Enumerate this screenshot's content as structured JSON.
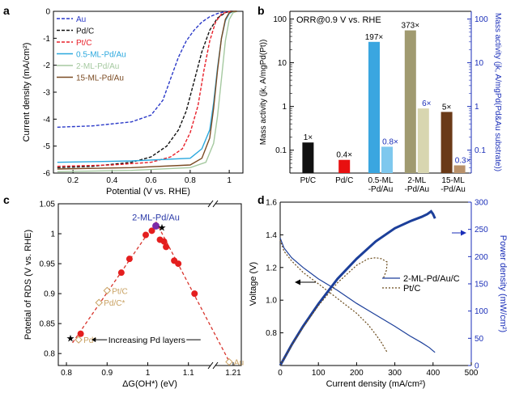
{
  "chart_data": [
    {
      "panel": "a",
      "type": "line",
      "xlabel": "Potential (V vs. RHE)",
      "ylabel": "Current density (mA/cm²)",
      "xlim": [
        0.1,
        1.07
      ],
      "ylim": [
        -6,
        0
      ],
      "xticks": [
        "0.2",
        "0.4",
        "0.6",
        "0.8",
        "1"
      ],
      "yticks": [
        "0",
        "-1",
        "-2",
        "-3",
        "-4",
        "-5",
        "-6"
      ],
      "series": [
        {
          "name": "Au",
          "color": "#2a39c8",
          "dash": "4,2",
          "x": [
            0.12,
            0.3,
            0.5,
            0.6,
            0.66,
            0.7,
            0.74,
            0.78,
            0.82,
            0.86,
            0.9,
            0.94,
            0.97,
            1.0,
            1.04
          ],
          "y": [
            -4.3,
            -4.25,
            -4.1,
            -3.85,
            -3.3,
            -2.5,
            -1.7,
            -1.1,
            -0.7,
            -0.4,
            -0.2,
            -0.08,
            -0.03,
            0,
            0
          ]
        },
        {
          "name": "Pd/C",
          "color": "#111111",
          "dash": "4,2",
          "x": [
            0.12,
            0.3,
            0.5,
            0.6,
            0.68,
            0.74,
            0.78,
            0.82,
            0.86,
            0.9,
            0.94,
            0.98,
            1.0,
            1.04
          ],
          "y": [
            -5.8,
            -5.75,
            -5.6,
            -5.4,
            -5.0,
            -4.4,
            -3.7,
            -2.6,
            -1.5,
            -0.7,
            -0.25,
            -0.05,
            0,
            0
          ]
        },
        {
          "name": "Pt/C",
          "color": "#e8202a",
          "dash": "4,2",
          "x": [
            0.12,
            0.4,
            0.6,
            0.7,
            0.76,
            0.8,
            0.84,
            0.87,
            0.9,
            0.93,
            0.96,
            0.99,
            1.02,
            1.04
          ],
          "y": [
            -5.75,
            -5.7,
            -5.6,
            -5.4,
            -5.1,
            -4.5,
            -3.5,
            -2.2,
            -1.1,
            -0.4,
            -0.1,
            -0.02,
            0,
            0
          ]
        },
        {
          "name": "0.5-ML-Pd/Au",
          "color": "#2aa8de",
          "dash": "",
          "x": [
            0.12,
            0.5,
            0.8,
            0.86,
            0.9,
            0.92,
            0.94,
            0.96,
            0.98,
            1.0,
            1.02,
            1.04
          ],
          "y": [
            -5.6,
            -5.55,
            -5.45,
            -5.1,
            -4.4,
            -3.4,
            -2.1,
            -1.0,
            -0.35,
            -0.08,
            0,
            0
          ]
        },
        {
          "name": "2-ML-Pd/Au",
          "color": "#a5c9a0",
          "dash": "",
          "x": [
            0.12,
            0.5,
            0.8,
            0.88,
            0.92,
            0.94,
            0.96,
            0.98,
            1.0,
            1.02,
            1.04
          ],
          "y": [
            -5.95,
            -5.9,
            -5.8,
            -5.6,
            -4.9,
            -3.9,
            -2.5,
            -1.1,
            -0.3,
            -0.05,
            0
          ]
        },
        {
          "name": "15-ML-Pd/Au",
          "color": "#7a4a22",
          "dash": "",
          "x": [
            0.12,
            0.5,
            0.8,
            0.86,
            0.9,
            0.92,
            0.94,
            0.96,
            0.98,
            1.0,
            1.02,
            1.04
          ],
          "y": [
            -5.85,
            -5.8,
            -5.7,
            -5.45,
            -4.7,
            -3.6,
            -2.2,
            -1.0,
            -0.3,
            -0.05,
            0,
            0
          ]
        }
      ]
    },
    {
      "panel": "b",
      "type": "bar",
      "title": "ORR@0.9 V vs. RHE",
      "ylabel": "Mass activity (jk, A/mgPd(Pt))",
      "y2label": "Mass activity (jk, A/mgPd(Pd&Au substrate))",
      "yscale": "log",
      "ylim": [
        0.03,
        150
      ],
      "yticks": [
        "0.1",
        "1",
        "10",
        "100"
      ],
      "categories": [
        "Pt/C",
        "Pd/C",
        "0.5-ML -Pd/Au",
        "2-ML -Pd/Au",
        "15-ML -Pd/Au"
      ],
      "series": [
        {
          "name": "mass activity per Pd(Pt)",
          "values": [
            0.15,
            0.06,
            30,
            55,
            0.75
          ],
          "colors": [
            "#111111",
            "#e81010",
            "#3aa6e0",
            "#a09a70",
            "#6a3a18"
          ],
          "labels": [
            "1×",
            "0.4×",
            "197×",
            "373×",
            "5×"
          ]
        },
        {
          "name": "mass activity per Pd&Au substrate",
          "values": [
            null,
            null,
            0.12,
            0.9,
            0.045
          ],
          "colors": [
            "",
            "",
            "#7ec8ee",
            "#d8d6b0",
            "#b9916a"
          ],
          "labels": [
            "",
            "",
            "0.8×",
            "6×",
            "0.3×"
          ]
        }
      ]
    },
    {
      "panel": "c",
      "type": "scatter",
      "xlabel": "ΔG(OH*) (eV)",
      "ylabel": "Potetial of RDS (V vs. RHE)",
      "xlim": [
        0.78,
        1.23
      ],
      "ylim": [
        0.78,
        1.05
      ],
      "xticks": [
        "0.8",
        "0.9",
        "1",
        "1.1",
        "1.21"
      ],
      "yticks": [
        "0.8",
        "0.85",
        "0.9",
        "0.95",
        "1",
        "1.05"
      ],
      "points": [
        {
          "x": 0.835,
          "y": 0.833
        },
        {
          "x": 0.935,
          "y": 0.935
        },
        {
          "x": 0.955,
          "y": 0.958
        },
        {
          "x": 0.995,
          "y": 0.998
        },
        {
          "x": 1.01,
          "y": 1.005
        },
        {
          "x": 1.03,
          "y": 0.99
        },
        {
          "x": 1.04,
          "y": 0.987
        },
        {
          "x": 1.045,
          "y": 0.978
        },
        {
          "x": 1.065,
          "y": 0.955
        },
        {
          "x": 1.075,
          "y": 0.95
        },
        {
          "x": 1.115,
          "y": 0.9
        }
      ],
      "highlight": {
        "x": 1.02,
        "y": 1.013,
        "label": "2-ML-Pd/Au"
      },
      "stars": [
        {
          "x": 1.035,
          "y": 1.01
        },
        {
          "x": 0.81,
          "y": 0.825
        }
      ],
      "open_points": [
        {
          "x": 0.9,
          "y": 0.905,
          "label": "Pt/C"
        },
        {
          "x": 0.88,
          "y": 0.885,
          "label": "Pd/C*"
        },
        {
          "x": 0.83,
          "y": 0.823,
          "label": "Pd*"
        },
        {
          "x": 1.2,
          "y": 0.786,
          "label": "Au"
        }
      ],
      "arrow_label": "Increasing Pd layers"
    },
    {
      "panel": "d",
      "type": "line",
      "xlabel": "Current density (mA/cm²)",
      "ylabel": "Voltage (V)",
      "y2label": "Power density (mW/cm²)",
      "xlim": [
        0,
        500
      ],
      "ylim": [
        0.6,
        1.6
      ],
      "y2lim": [
        0,
        300
      ],
      "xticks": [
        "0",
        "100",
        "200",
        "300",
        "400",
        "500"
      ],
      "yticks": [
        "0.8",
        "1.0",
        "1.2",
        "1.4",
        "1.6"
      ],
      "y2ticks": [
        "0",
        "50",
        "100",
        "150",
        "200",
        "250",
        "300"
      ],
      "legend": [
        "2-ML-Pd/Au/C",
        "Pt/C"
      ],
      "series": [
        {
          "name": "2-ML-Pd/Au/C voltage",
          "axis": "left",
          "color": "#1c3f9a",
          "dash": "",
          "x": [
            0,
            10,
            30,
            60,
            100,
            150,
            200,
            250,
            300,
            340,
            370,
            390,
            400,
            405
          ],
          "y": [
            1.38,
            1.32,
            1.26,
            1.2,
            1.13,
            1.06,
            0.98,
            0.91,
            0.84,
            0.78,
            0.74,
            0.71,
            0.69,
            0.68
          ]
        },
        {
          "name": "Pt/C voltage",
          "axis": "left",
          "color": "#6a4a1a",
          "dash": "2,2",
          "x": [
            0,
            10,
            30,
            60,
            100,
            150,
            200,
            230,
            250,
            265,
            275,
            280
          ],
          "y": [
            1.37,
            1.3,
            1.24,
            1.17,
            1.1,
            1.01,
            0.92,
            0.85,
            0.79,
            0.74,
            0.7,
            0.68
          ]
        },
        {
          "name": "2-ML-Pd/Au/C power",
          "axis": "right",
          "color": "#1c3f9a",
          "dash": "",
          "x": [
            0,
            30,
            60,
            100,
            150,
            200,
            250,
            300,
            340,
            370,
            385,
            395,
            400,
            405
          ],
          "y": [
            0,
            38,
            72,
            113,
            159,
            196,
            228,
            252,
            265,
            273,
            278,
            283,
            278,
            270
          ]
        },
        {
          "name": "Pt/C power",
          "axis": "right",
          "color": "#6a4a1a",
          "dash": "2,2",
          "x": [
            0,
            30,
            60,
            100,
            150,
            200,
            230,
            250,
            265,
            275,
            280,
            278,
            270
          ],
          "y": [
            0,
            37,
            70,
            110,
            152,
            184,
            196,
            198,
            196,
            192,
            190,
            175,
            160
          ]
        }
      ]
    }
  ],
  "panel_labels": {
    "a": "a",
    "b": "b",
    "c": "c",
    "d": "d"
  },
  "colors": {
    "axis_blue": "#1a2eb8",
    "red_dot": "#e41e1e",
    "dashed_red": "#d8342c",
    "open_marker": "#c8a060"
  }
}
